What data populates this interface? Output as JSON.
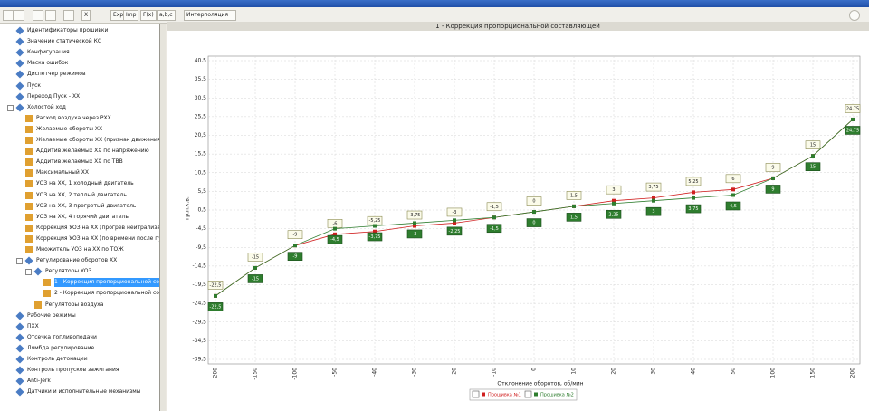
{
  "toolbar": {
    "buttons": [
      "X",
      "Exp",
      "Imp",
      "F(x)",
      "a,b,c"
    ],
    "dropdown": "Интерполяция"
  },
  "tree": {
    "items": [
      {
        "label": "Идентификаторы прошивки"
      },
      {
        "label": "Значение статической КС"
      },
      {
        "label": "Конфигурация"
      },
      {
        "label": "Маска ошибок"
      },
      {
        "label": "Диспетчер режимов"
      },
      {
        "label": "Пуск"
      },
      {
        "label": "Переход Пуск - ХХ"
      },
      {
        "label": "Холостой ход",
        "children": [
          {
            "label": "Расход воздуха через РХХ"
          },
          {
            "label": "Желаемые обороты ХХ"
          },
          {
            "label": "Желаемые обороты ХХ (признак движения)"
          },
          {
            "label": "Аддитив желаемых ХХ по напряжению"
          },
          {
            "label": "Аддитив желаемых ХХ по ТВВ"
          },
          {
            "label": "Максимальный ХХ"
          },
          {
            "label": "УОЗ на ХХ, 1 холодный двигатель"
          },
          {
            "label": "УОЗ на ХХ, 2 теплый двигатель"
          },
          {
            "label": "УОЗ на ХХ, 3 прогретый двигатель"
          },
          {
            "label": "УОЗ на ХХ, 4 горячий двигатель"
          },
          {
            "label": "Коррекция УОЗ на ХХ (прогрев нейтрализатора)"
          },
          {
            "label": "Коррекция УОЗ на ХХ (по времени после пуска)"
          },
          {
            "label": "Множитель УОЗ на ХХ по ТОЖ"
          },
          {
            "label": "Регулирование оборотов ХХ",
            "children": [
              {
                "label": "Регуляторы УОЗ",
                "children": [
                  {
                    "label": "1 - Коррекция пропорциональной составля...",
                    "selected": true
                  },
                  {
                    "label": "2 - Коррекция пропорциональной составля..."
                  }
                ]
              },
              {
                "label": "Регуляторы воздуха"
              }
            ]
          }
        ]
      },
      {
        "label": "Рабочие режимы"
      },
      {
        "label": "ПХХ"
      },
      {
        "label": "Отсечка топливоподачи"
      },
      {
        "label": "Лямбда регулирование"
      },
      {
        "label": "Контроль детонации"
      },
      {
        "label": "Контроль пропусков зажигания"
      },
      {
        "label": "Anti-Jerk"
      },
      {
        "label": "Датчики и исполнительные механизмы"
      }
    ]
  },
  "chart_data": {
    "type": "line",
    "title": "1 - Коррекция пропорциональной составляющей",
    "xlabel": "Отклонение оборотов, об/мин",
    "ylabel": "гр.п.к.в.",
    "categories": [
      "-200",
      "-150",
      "-100",
      "-50",
      "-40",
      "-30",
      "-20",
      "-10",
      "0",
      "10",
      "20",
      "30",
      "40",
      "50",
      "100",
      "150",
      "200"
    ],
    "series": [
      {
        "name": "Прошивка №1",
        "color": "#d02020",
        "values": [
          -22.5,
          -15,
          -9,
          -6,
          -5.25,
          -3.75,
          -3,
          -1.5,
          0,
          1.5,
          3,
          3.75,
          5.25,
          6,
          9,
          15,
          24.75
        ],
        "value_labels": [
          "-22,5",
          "-15",
          "-9",
          "-6",
          "-5,25",
          "-3,75",
          "-3",
          "-1,5",
          "0",
          "1,5",
          "3",
          "3,75",
          "5,25",
          "6",
          "9",
          "15",
          "24,75"
        ]
      },
      {
        "name": "Прошивка №2",
        "color": "#2e7d2e",
        "values": [
          -22.5,
          -15,
          -9,
          -4.5,
          -3.75,
          -3,
          -2.25,
          -1.5,
          0,
          1.5,
          2.25,
          3,
          3.75,
          4.5,
          9,
          15,
          24.75
        ],
        "value_labels": [
          "-22,5",
          "-15",
          "-9",
          "-4,5",
          "-3,75",
          "-3",
          "-2,25",
          "-1,5",
          "0",
          "1,5",
          "2,25",
          "3",
          "3,75",
          "4,5",
          "9",
          "15",
          "24,75"
        ]
      }
    ],
    "ylim": [
      -39.5,
      40.5
    ],
    "yticks": [
      {
        "value": -39.5,
        "label": "-39,5"
      },
      {
        "value": -34.5,
        "label": "-34,5"
      },
      {
        "value": -29.5,
        "label": "-29,5"
      },
      {
        "value": -24.5,
        "label": "-24,5"
      },
      {
        "value": -19.5,
        "label": "-19,5"
      },
      {
        "value": -14.5,
        "label": "-14,5"
      },
      {
        "value": -9.5,
        "label": "-9,5"
      },
      {
        "value": -4.5,
        "label": "-4,5"
      },
      {
        "value": 0.5,
        "label": "0,5"
      },
      {
        "value": 5.5,
        "label": "5,5"
      },
      {
        "value": 10.5,
        "label": "10,5"
      },
      {
        "value": 15.5,
        "label": "15,5"
      },
      {
        "value": 20.5,
        "label": "20,5"
      },
      {
        "value": 25.5,
        "label": "25,5"
      },
      {
        "value": 30.5,
        "label": "30,5"
      },
      {
        "value": 35.5,
        "label": "35,5"
      },
      {
        "value": 40.5,
        "label": "40,5"
      }
    ],
    "grid": true,
    "legend": "bottom"
  }
}
